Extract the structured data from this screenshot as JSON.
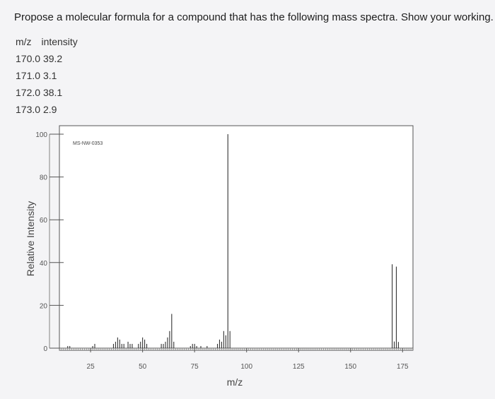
{
  "question": "Propose a molecular formula for a compound that has the following mass spectra. Show your working.",
  "table": {
    "headers": [
      "m/z",
      "intensity"
    ],
    "rows": [
      [
        "170.0",
        "39.2"
      ],
      [
        "171.0",
        "3.1"
      ],
      [
        "172.0",
        "38.1"
      ],
      [
        "173.0",
        "2.9"
      ]
    ]
  },
  "chart_data": {
    "type": "bar",
    "annotation": "MS-NW-0353",
    "xlabel": "m/z",
    "ylabel": "Relative Intensity",
    "xlim": [
      10,
      180
    ],
    "ylim": [
      0,
      100
    ],
    "xticks": [
      25,
      50,
      75,
      100,
      125,
      150,
      175
    ],
    "yticks": [
      0,
      20,
      40,
      60,
      80,
      100
    ],
    "grid": false,
    "peaks": [
      {
        "x": 14,
        "y": 1
      },
      {
        "x": 15,
        "y": 1
      },
      {
        "x": 26,
        "y": 1
      },
      {
        "x": 27,
        "y": 2
      },
      {
        "x": 36,
        "y": 2
      },
      {
        "x": 37,
        "y": 3
      },
      {
        "x": 38,
        "y": 5
      },
      {
        "x": 39,
        "y": 4
      },
      {
        "x": 40,
        "y": 2
      },
      {
        "x": 41,
        "y": 2
      },
      {
        "x": 43,
        "y": 3
      },
      {
        "x": 44,
        "y": 2
      },
      {
        "x": 45,
        "y": 2
      },
      {
        "x": 48,
        "y": 2
      },
      {
        "x": 49,
        "y": 3
      },
      {
        "x": 50,
        "y": 5
      },
      {
        "x": 51,
        "y": 4
      },
      {
        "x": 52,
        "y": 2
      },
      {
        "x": 59,
        "y": 2
      },
      {
        "x": 60,
        "y": 2
      },
      {
        "x": 61,
        "y": 3
      },
      {
        "x": 62,
        "y": 5
      },
      {
        "x": 63,
        "y": 8
      },
      {
        "x": 64,
        "y": 16
      },
      {
        "x": 65,
        "y": 3
      },
      {
        "x": 73,
        "y": 1
      },
      {
        "x": 74,
        "y": 2
      },
      {
        "x": 75,
        "y": 2
      },
      {
        "x": 76,
        "y": 1
      },
      {
        "x": 78,
        "y": 1
      },
      {
        "x": 81,
        "y": 1
      },
      {
        "x": 86,
        "y": 2
      },
      {
        "x": 87,
        "y": 4
      },
      {
        "x": 88,
        "y": 3
      },
      {
        "x": 89,
        "y": 8
      },
      {
        "x": 90,
        "y": 6
      },
      {
        "x": 91,
        "y": 100
      },
      {
        "x": 92,
        "y": 8
      },
      {
        "x": 170,
        "y": 39.2
      },
      {
        "x": 171,
        "y": 3.1
      },
      {
        "x": 172,
        "y": 38.1
      },
      {
        "x": 173,
        "y": 2.9
      }
    ]
  }
}
